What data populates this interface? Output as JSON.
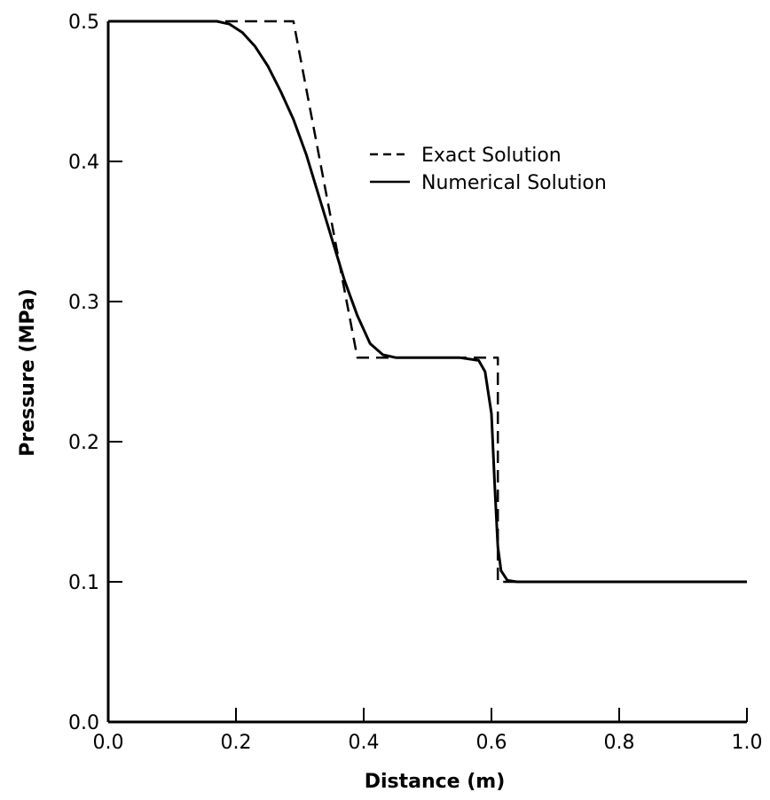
{
  "chart_data": {
    "type": "line",
    "title": "",
    "xlabel": "Distance (m)",
    "ylabel": "Pressure (MPa)",
    "xlim": [
      0.0,
      1.0
    ],
    "ylim": [
      0.0,
      0.5
    ],
    "x_ticks": [
      "0.0",
      "0.2",
      "0.4",
      "0.6",
      "0.8",
      "1.0"
    ],
    "y_ticks": [
      "0.0",
      "0.1",
      "0.2",
      "0.3",
      "0.4",
      "0.5"
    ],
    "grid": false,
    "legend_position": "upper-right",
    "series": [
      {
        "name": "Exact Solution",
        "style": "dashed",
        "x": [
          0.0,
          0.29,
          0.39,
          0.61,
          0.61,
          1.0
        ],
        "y": [
          0.5,
          0.5,
          0.26,
          0.26,
          0.1,
          0.1
        ]
      },
      {
        "name": "Numerical Solution",
        "style": "solid",
        "x": [
          0.0,
          0.17,
          0.19,
          0.21,
          0.23,
          0.25,
          0.27,
          0.29,
          0.31,
          0.33,
          0.35,
          0.37,
          0.39,
          0.41,
          0.43,
          0.45,
          0.5,
          0.55,
          0.58,
          0.59,
          0.6,
          0.605,
          0.61,
          0.615,
          0.625,
          0.64,
          0.7,
          1.0
        ],
        "y": [
          0.5,
          0.5,
          0.498,
          0.492,
          0.482,
          0.468,
          0.45,
          0.43,
          0.405,
          0.375,
          0.345,
          0.315,
          0.29,
          0.27,
          0.262,
          0.26,
          0.26,
          0.26,
          0.258,
          0.25,
          0.22,
          0.17,
          0.125,
          0.108,
          0.101,
          0.1,
          0.1,
          0.1
        ]
      }
    ]
  }
}
